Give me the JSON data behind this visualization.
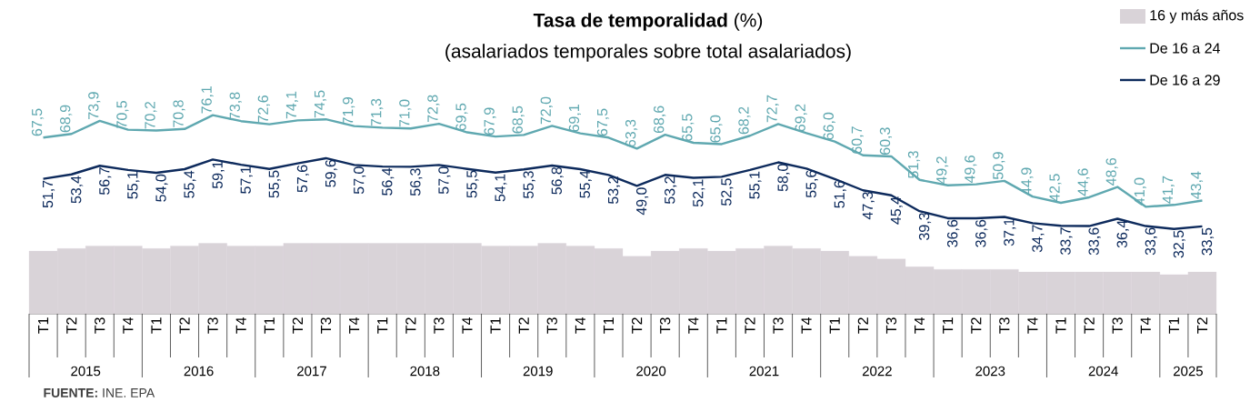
{
  "chart_data": {
    "type": "line",
    "title": "**Tasa de temporalidad** (%)",
    "subtitle": "(asalariados temporales sobre total asalariados)",
    "categories": [
      "T1",
      "T2",
      "T3",
      "T4",
      "T1",
      "T2",
      "T3",
      "T4",
      "T1",
      "T2",
      "T3",
      "T4",
      "T1",
      "T2",
      "T3",
      "T4",
      "T1",
      "T2",
      "T3",
      "T4",
      "T1",
      "T2",
      "T3",
      "T4",
      "T1",
      "T2",
      "T3",
      "T4",
      "T1",
      "T2",
      "T3",
      "T4",
      "T1",
      "T2",
      "T3",
      "T4",
      "T1",
      "T2",
      "T3",
      "T4",
      "T1",
      "T2"
    ],
    "annotations": [
      "2015",
      "2016",
      "2017",
      "2018",
      "2019",
      "2020",
      "2021",
      "2022",
      "2023",
      "2024",
      "2025",
      "**FUENTE:** INE. EPA"
    ],
    "legend": "top right",
    "series": [
      {
        "name": "16 y más años",
        "type": "bar",
        "color": "#d9d3d8",
        "values": [
          24,
          25,
          26,
          26,
          25,
          26,
          27,
          26,
          26,
          27,
          27,
          27,
          27,
          27,
          27,
          27,
          26,
          26,
          27,
          26,
          25,
          22,
          24,
          25,
          24,
          25,
          26,
          25,
          24,
          22,
          21,
          18,
          17,
          17,
          17,
          16,
          16,
          16,
          16,
          16,
          15,
          16
        ]
      },
      {
        "name": "De 16 a 24",
        "color": "#5fa8b0",
        "values": [
          67.5,
          68.9,
          73.9,
          70.5,
          70.2,
          70.8,
          76.1,
          73.8,
          72.6,
          74.1,
          74.5,
          71.9,
          71.3,
          71.0,
          72.8,
          69.5,
          67.9,
          68.5,
          72.0,
          69.1,
          67.5,
          63.3,
          68.6,
          65.5,
          65.0,
          68.2,
          72.7,
          69.2,
          66.0,
          60.7,
          60.3,
          51.3,
          49.2,
          49.6,
          50.9,
          44.9,
          42.5,
          44.6,
          48.6,
          41.0,
          41.7,
          43.4
        ],
        "value_labels": [
          "67,5",
          "68,9",
          "73,9",
          "70,5",
          "70,2",
          "70,8",
          "76,1",
          "73,8",
          "72,6",
          "74,1",
          "74,5",
          "71,9",
          "71,3",
          "71,0",
          "72,8",
          "69,5",
          "67,9",
          "68,5",
          "72,0",
          "69,1",
          "67,5",
          "63,3",
          "68,6",
          "65,5",
          "65,0",
          "68,2",
          "72,7",
          "69,2",
          "66,0",
          "60,7",
          "60,3",
          "51,3",
          "49,2",
          "49,6",
          "50,9",
          "44,9",
          "42,5",
          "44,6",
          "48,6",
          "41,0",
          "41,7",
          "43,4"
        ]
      },
      {
        "name": "De 16 a 29",
        "color": "#0d2a5c",
        "values": [
          51.7,
          53.4,
          56.7,
          55.1,
          54.0,
          55.4,
          59.1,
          57.1,
          55.5,
          57.6,
          59.6,
          57.0,
          56.4,
          56.3,
          57.0,
          55.5,
          54.1,
          55.3,
          56.8,
          55.4,
          53.2,
          49.0,
          53.2,
          52.1,
          52.5,
          55.1,
          58.0,
          55.6,
          51.6,
          47.3,
          45.4,
          39.3,
          36.6,
          36.6,
          37.1,
          34.7,
          33.7,
          33.6,
          36.4,
          33.6,
          32.5,
          33.5
        ],
        "value_labels": [
          "51,7",
          "53,4",
          "56,7",
          "55,1",
          "54,0",
          "55,4",
          "59,1",
          "57,1",
          "55,5",
          "57,6",
          "59,6",
          "57,0",
          "56,4",
          "56,3",
          "57,0",
          "55,5",
          "54,1",
          "55,3",
          "56,8",
          "55,4",
          "53,2",
          "49,0",
          "53,2",
          "52,1",
          "52,5",
          "55,1",
          "58,0",
          "55,6",
          "51,6",
          "47,3",
          "45,4",
          "39,3",
          "36,6",
          "36,6",
          "37,1",
          "34,7",
          "33,7",
          "33,6",
          "36,4",
          "33,6",
          "32,5",
          "33,5"
        ]
      }
    ]
  }
}
